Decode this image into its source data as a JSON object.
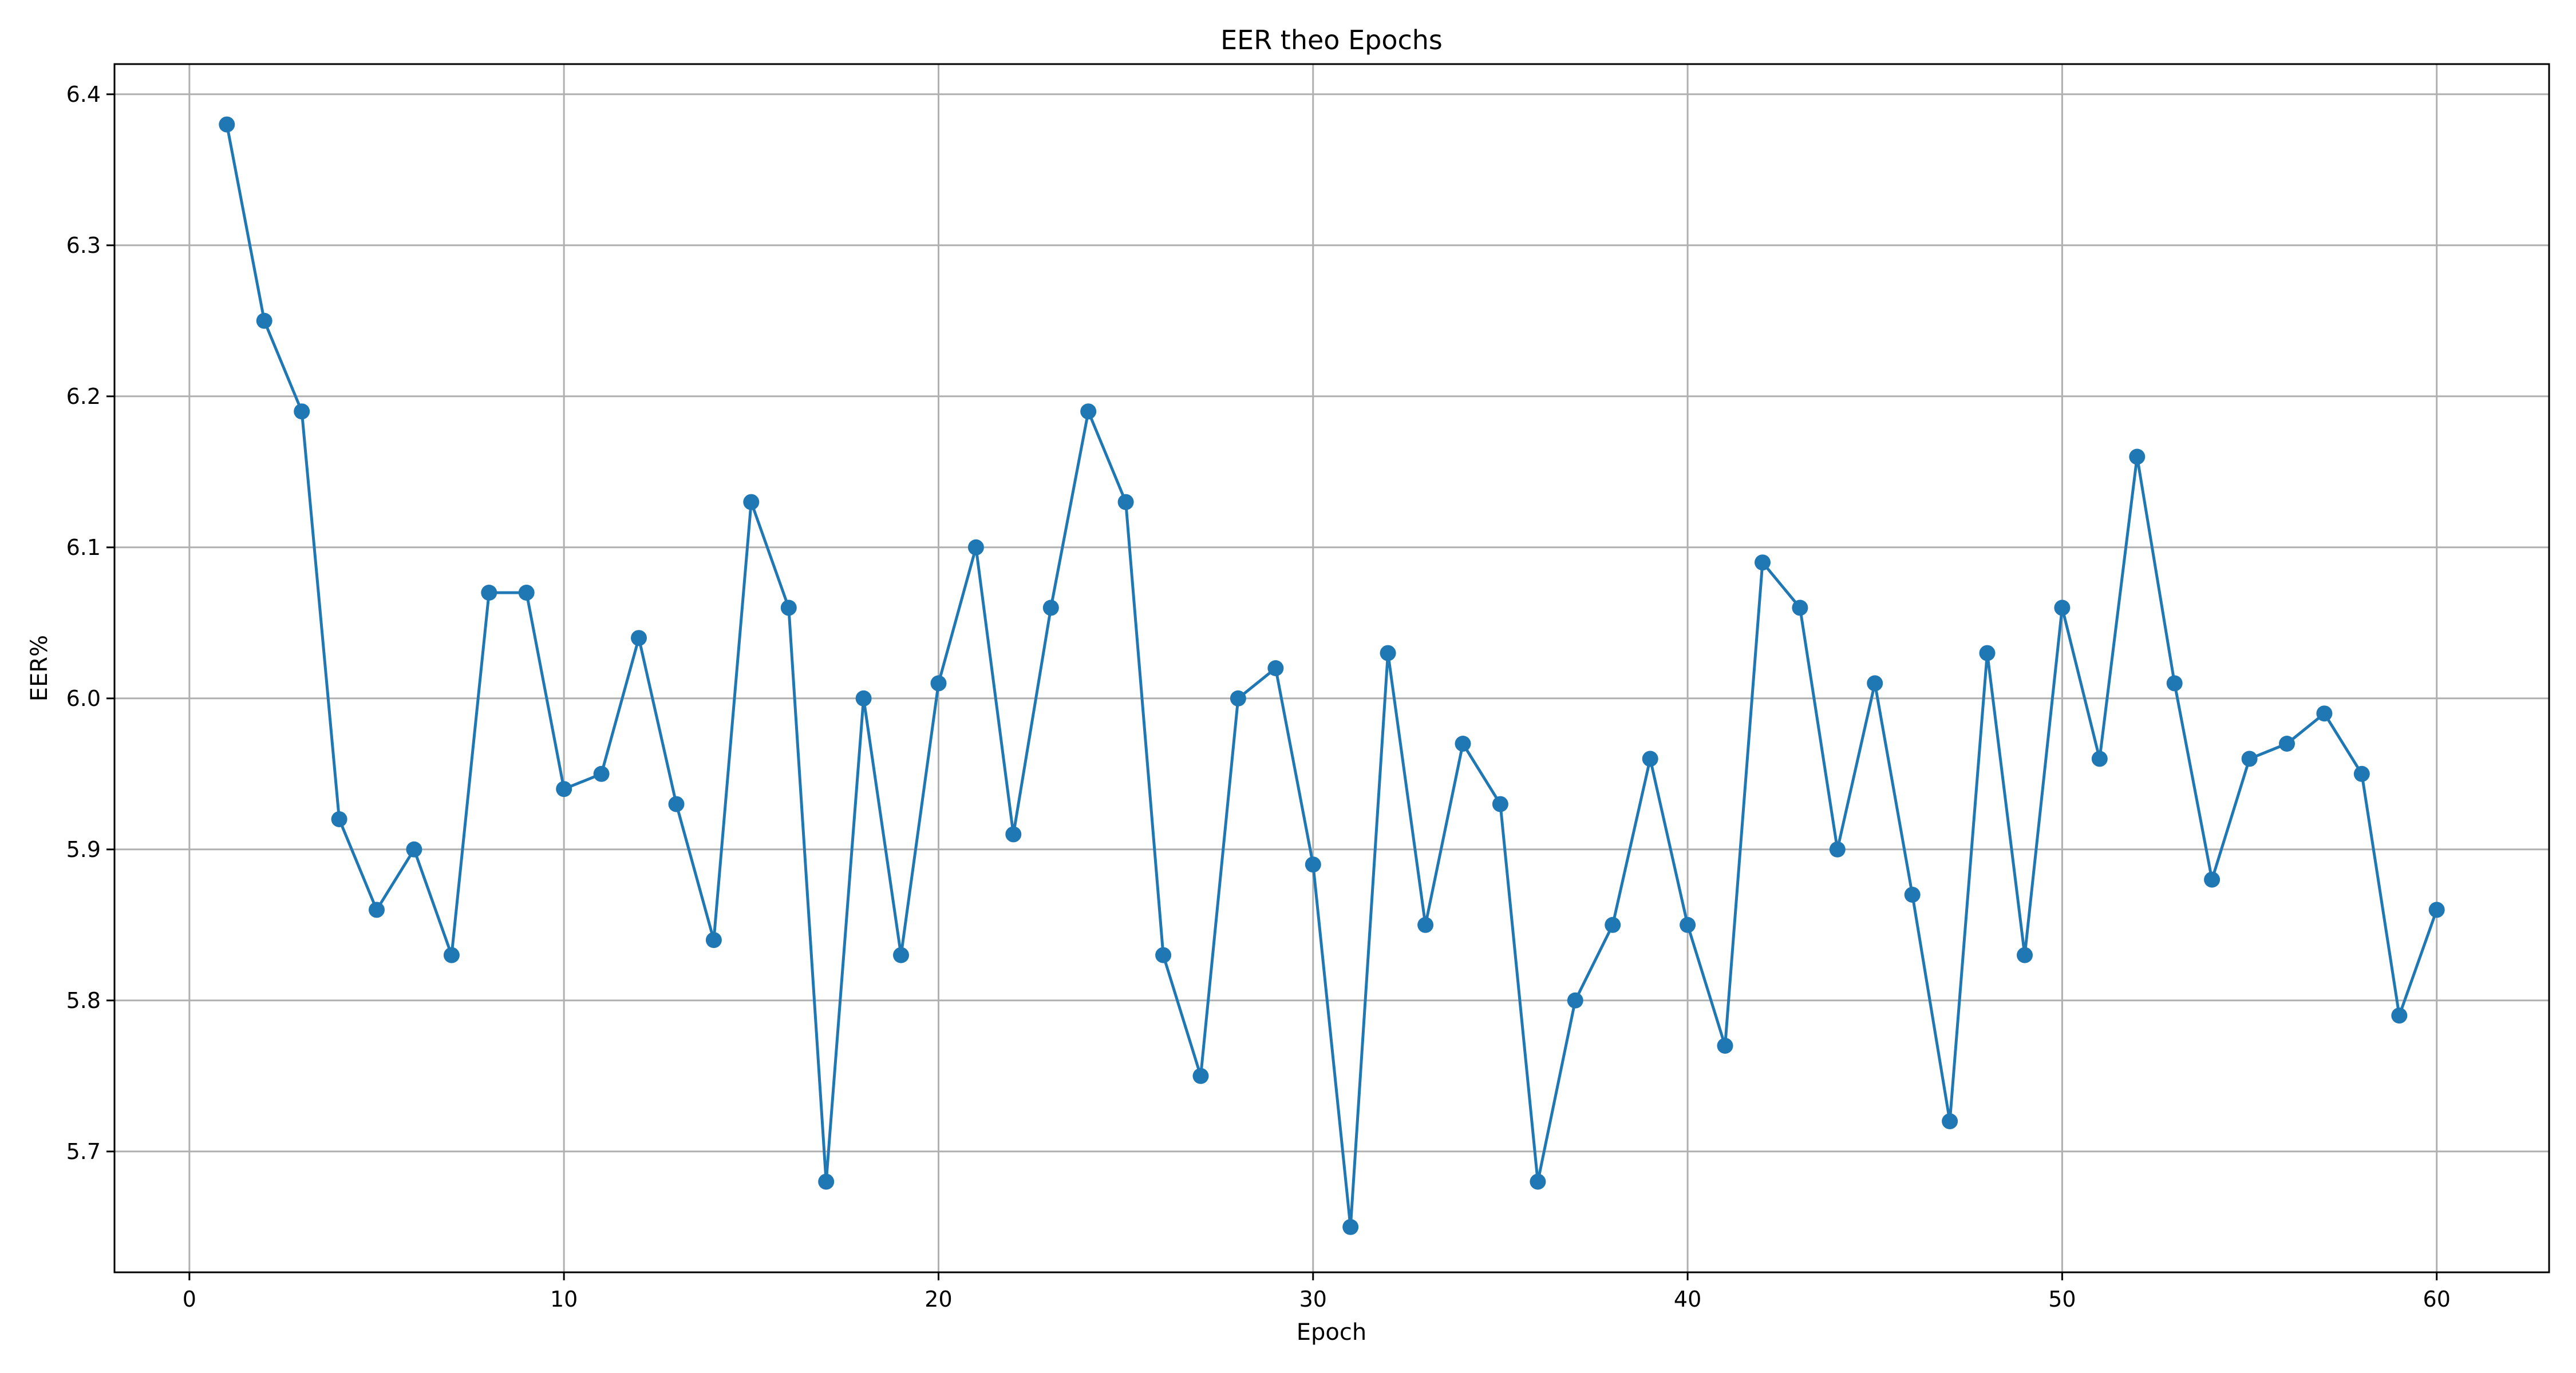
{
  "chart_data": {
    "type": "line",
    "title": "EER theo Epochs",
    "xlabel": "Epoch",
    "ylabel": "EER%",
    "xlim": [
      -2,
      63
    ],
    "ylim": [
      5.62,
      6.42
    ],
    "xticks": [
      0,
      10,
      20,
      30,
      40,
      50,
      60
    ],
    "yticks": [
      5.7,
      5.8,
      5.9,
      6.0,
      6.1,
      6.2,
      6.3,
      6.4
    ],
    "xtick_labels": [
      "0",
      "10",
      "20",
      "30",
      "40",
      "50",
      "60"
    ],
    "ytick_labels": [
      "5.7",
      "5.8",
      "5.9",
      "6.0",
      "6.1",
      "6.2",
      "6.3",
      "6.4"
    ],
    "grid": true,
    "series": [
      {
        "color": "#1f77b4",
        "marker": "circle",
        "x": [
          1,
          2,
          3,
          4,
          5,
          6,
          7,
          8,
          9,
          10,
          11,
          12,
          13,
          14,
          15,
          16,
          17,
          18,
          19,
          20,
          21,
          22,
          23,
          24,
          25,
          26,
          27,
          28,
          29,
          30,
          31,
          32,
          33,
          34,
          35,
          36,
          37,
          38,
          39,
          40,
          41,
          42,
          43,
          44,
          45,
          46,
          47,
          48,
          49,
          50,
          51,
          52,
          53,
          54,
          55,
          56,
          57,
          58,
          59,
          60
        ],
        "y": [
          6.38,
          6.25,
          6.19,
          5.92,
          5.86,
          5.9,
          5.83,
          6.07,
          6.07,
          5.94,
          5.95,
          6.04,
          5.93,
          5.84,
          6.13,
          6.06,
          5.68,
          6.0,
          5.83,
          6.01,
          6.1,
          5.91,
          6.06,
          6.19,
          6.13,
          5.83,
          5.75,
          6.0,
          6.02,
          5.89,
          5.65,
          6.03,
          5.85,
          5.97,
          5.93,
          5.68,
          5.8,
          5.85,
          5.96,
          5.85,
          5.77,
          6.09,
          6.06,
          5.9,
          6.01,
          5.87,
          5.72,
          6.03,
          5.83,
          6.06,
          5.96,
          6.16,
          6.01,
          5.88,
          5.96,
          5.97,
          5.99,
          5.95,
          5.79,
          5.86
        ]
      }
    ]
  }
}
